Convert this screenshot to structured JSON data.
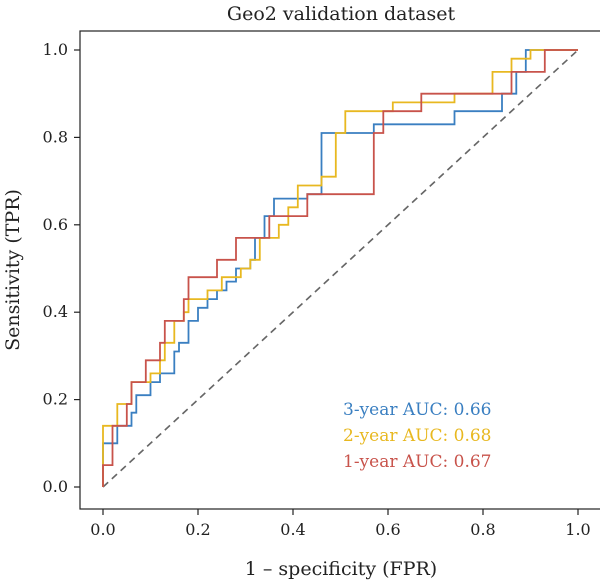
{
  "chart_data": {
    "type": "line",
    "title": "Geo2 validation dataset",
    "xlabel": "1 – specificity (FPR)",
    "ylabel": "Sensitivity (TPR)",
    "xlim": [
      0,
      1
    ],
    "ylim": [
      0,
      1
    ],
    "xticks": [
      "0.0",
      "0.2",
      "0.4",
      "0.6",
      "0.8",
      "1.0"
    ],
    "yticks": [
      "0.0",
      "0.2",
      "0.4",
      "0.6",
      "0.8",
      "1.0"
    ],
    "grid": false,
    "legend_position": "bottom-right",
    "reference_line": {
      "style": "dashed",
      "color": "#666666",
      "points": [
        [
          0,
          0
        ],
        [
          1,
          1
        ]
      ]
    },
    "series": [
      {
        "name": "3-year",
        "label": "3-year AUC: 0.66",
        "color": "#3a7fc1",
        "points": [
          [
            0,
            0
          ],
          [
            0,
            0.1
          ],
          [
            0.03,
            0.1
          ],
          [
            0.03,
            0.14
          ],
          [
            0.06,
            0.14
          ],
          [
            0.06,
            0.17
          ],
          [
            0.07,
            0.17
          ],
          [
            0.07,
            0.21
          ],
          [
            0.1,
            0.21
          ],
          [
            0.1,
            0.24
          ],
          [
            0.12,
            0.24
          ],
          [
            0.12,
            0.26
          ],
          [
            0.15,
            0.26
          ],
          [
            0.15,
            0.31
          ],
          [
            0.16,
            0.31
          ],
          [
            0.16,
            0.33
          ],
          [
            0.18,
            0.33
          ],
          [
            0.18,
            0.38
          ],
          [
            0.2,
            0.38
          ],
          [
            0.2,
            0.41
          ],
          [
            0.22,
            0.41
          ],
          [
            0.22,
            0.43
          ],
          [
            0.24,
            0.43
          ],
          [
            0.24,
            0.45
          ],
          [
            0.26,
            0.45
          ],
          [
            0.26,
            0.47
          ],
          [
            0.28,
            0.47
          ],
          [
            0.28,
            0.5
          ],
          [
            0.31,
            0.5
          ],
          [
            0.31,
            0.52
          ],
          [
            0.32,
            0.52
          ],
          [
            0.32,
            0.57
          ],
          [
            0.34,
            0.57
          ],
          [
            0.34,
            0.62
          ],
          [
            0.36,
            0.62
          ],
          [
            0.36,
            0.66
          ],
          [
            0.43,
            0.66
          ],
          [
            0.43,
            0.67
          ],
          [
            0.46,
            0.67
          ],
          [
            0.46,
            0.81
          ],
          [
            0.57,
            0.81
          ],
          [
            0.57,
            0.83
          ],
          [
            0.74,
            0.83
          ],
          [
            0.74,
            0.86
          ],
          [
            0.84,
            0.86
          ],
          [
            0.84,
            0.9
          ],
          [
            0.87,
            0.9
          ],
          [
            0.87,
            0.95
          ],
          [
            0.89,
            0.95
          ],
          [
            0.89,
            1.0
          ],
          [
            1.0,
            1.0
          ]
        ]
      },
      {
        "name": "2-year",
        "label": "2-year AUC: 0.68",
        "color": "#e8b820",
        "points": [
          [
            0,
            0
          ],
          [
            0,
            0.14
          ],
          [
            0.03,
            0.14
          ],
          [
            0.03,
            0.19
          ],
          [
            0.06,
            0.19
          ],
          [
            0.06,
            0.24
          ],
          [
            0.1,
            0.24
          ],
          [
            0.1,
            0.26
          ],
          [
            0.12,
            0.26
          ],
          [
            0.12,
            0.29
          ],
          [
            0.13,
            0.29
          ],
          [
            0.13,
            0.33
          ],
          [
            0.15,
            0.33
          ],
          [
            0.15,
            0.38
          ],
          [
            0.17,
            0.38
          ],
          [
            0.17,
            0.4
          ],
          [
            0.18,
            0.4
          ],
          [
            0.18,
            0.43
          ],
          [
            0.22,
            0.43
          ],
          [
            0.22,
            0.45
          ],
          [
            0.25,
            0.45
          ],
          [
            0.25,
            0.48
          ],
          [
            0.29,
            0.48
          ],
          [
            0.29,
            0.5
          ],
          [
            0.31,
            0.5
          ],
          [
            0.31,
            0.52
          ],
          [
            0.33,
            0.52
          ],
          [
            0.33,
            0.57
          ],
          [
            0.37,
            0.57
          ],
          [
            0.37,
            0.6
          ],
          [
            0.39,
            0.6
          ],
          [
            0.39,
            0.64
          ],
          [
            0.41,
            0.64
          ],
          [
            0.41,
            0.69
          ],
          [
            0.46,
            0.69
          ],
          [
            0.46,
            0.71
          ],
          [
            0.49,
            0.71
          ],
          [
            0.49,
            0.81
          ],
          [
            0.51,
            0.81
          ],
          [
            0.51,
            0.86
          ],
          [
            0.61,
            0.86
          ],
          [
            0.61,
            0.88
          ],
          [
            0.74,
            0.88
          ],
          [
            0.74,
            0.9
          ],
          [
            0.82,
            0.9
          ],
          [
            0.82,
            0.95
          ],
          [
            0.86,
            0.95
          ],
          [
            0.86,
            0.98
          ],
          [
            0.9,
            0.98
          ],
          [
            0.9,
            1.0
          ],
          [
            1.0,
            1.0
          ]
        ]
      },
      {
        "name": "1-year",
        "label": "1-year AUC: 0.67",
        "color": "#c8534b",
        "points": [
          [
            0,
            0
          ],
          [
            0,
            0.05
          ],
          [
            0.02,
            0.05
          ],
          [
            0.02,
            0.14
          ],
          [
            0.05,
            0.14
          ],
          [
            0.05,
            0.19
          ],
          [
            0.06,
            0.19
          ],
          [
            0.06,
            0.24
          ],
          [
            0.09,
            0.24
          ],
          [
            0.09,
            0.29
          ],
          [
            0.12,
            0.29
          ],
          [
            0.12,
            0.33
          ],
          [
            0.13,
            0.33
          ],
          [
            0.13,
            0.38
          ],
          [
            0.17,
            0.38
          ],
          [
            0.17,
            0.43
          ],
          [
            0.18,
            0.43
          ],
          [
            0.18,
            0.48
          ],
          [
            0.24,
            0.48
          ],
          [
            0.24,
            0.52
          ],
          [
            0.28,
            0.52
          ],
          [
            0.28,
            0.57
          ],
          [
            0.35,
            0.57
          ],
          [
            0.35,
            0.62
          ],
          [
            0.43,
            0.62
          ],
          [
            0.43,
            0.67
          ],
          [
            0.57,
            0.67
          ],
          [
            0.57,
            0.81
          ],
          [
            0.59,
            0.81
          ],
          [
            0.59,
            0.86
          ],
          [
            0.67,
            0.86
          ],
          [
            0.67,
            0.9
          ],
          [
            0.86,
            0.9
          ],
          [
            0.86,
            0.95
          ],
          [
            0.88,
            0.95
          ],
          [
            0.88,
            0.95
          ],
          [
            0.93,
            0.95
          ],
          [
            0.93,
            1.0
          ],
          [
            1.0,
            1.0
          ]
        ]
      }
    ]
  }
}
